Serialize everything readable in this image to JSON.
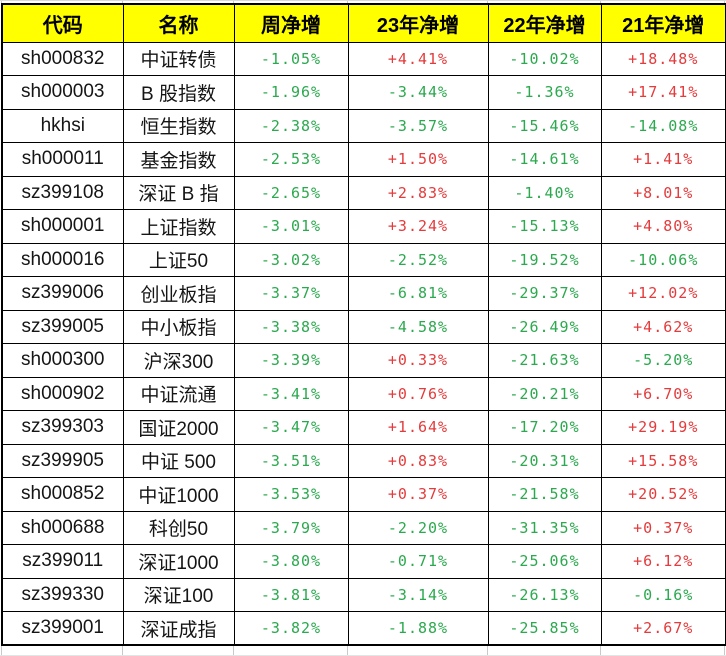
{
  "colors": {
    "header_bg": "#ffff00",
    "positive": "#e43b3c",
    "negative": "#2ba94e",
    "table_border": "#000000",
    "gridline": "#c9c9c9"
  },
  "table": {
    "columns": [
      "代码",
      "名称",
      "周净增",
      "23年净增",
      "22年净增",
      "21年净增"
    ],
    "rows": [
      {
        "code": "sh000832",
        "name": "中证转债",
        "week": "-1.05%",
        "y23": "+4.41%",
        "y22": "-10.02%",
        "y21": "+18.48%"
      },
      {
        "code": "sh000003",
        "name": "B 股指数",
        "week": "-1.96%",
        "y23": "-3.44%",
        "y22": "-1.36%",
        "y21": "+17.41%"
      },
      {
        "code": "hkhsi",
        "name": "恒生指数",
        "week": "-2.38%",
        "y23": "-3.57%",
        "y22": "-15.46%",
        "y21": "-14.08%"
      },
      {
        "code": "sh000011",
        "name": "基金指数",
        "week": "-2.53%",
        "y23": "+1.50%",
        "y22": "-14.61%",
        "y21": "+1.41%"
      },
      {
        "code": "sz399108",
        "name": "深证 B 指",
        "week": "-2.65%",
        "y23": "+2.83%",
        "y22": "-1.40%",
        "y21": "+8.01%"
      },
      {
        "code": "sh000001",
        "name": "上证指数",
        "week": "-3.01%",
        "y23": "+3.24%",
        "y22": "-15.13%",
        "y21": "+4.80%"
      },
      {
        "code": "sh000016",
        "name": "上证50",
        "week": "-3.02%",
        "y23": "-2.52%",
        "y22": "-19.52%",
        "y21": "-10.06%"
      },
      {
        "code": "sz399006",
        "name": "创业板指",
        "week": "-3.37%",
        "y23": "-6.81%",
        "y22": "-29.37%",
        "y21": "+12.02%"
      },
      {
        "code": "sz399005",
        "name": "中小板指",
        "week": "-3.38%",
        "y23": "-4.58%",
        "y22": "-26.49%",
        "y21": "+4.62%"
      },
      {
        "code": "sh000300",
        "name": "沪深300",
        "week": "-3.39%",
        "y23": "+0.33%",
        "y22": "-21.63%",
        "y21": "-5.20%"
      },
      {
        "code": "sh000902",
        "name": "中证流通",
        "week": "-3.41%",
        "y23": "+0.76%",
        "y22": "-20.21%",
        "y21": "+6.70%"
      },
      {
        "code": "sz399303",
        "name": "国证2000",
        "week": "-3.47%",
        "y23": "+1.64%",
        "y22": "-17.20%",
        "y21": "+29.19%"
      },
      {
        "code": "sz399905",
        "name": "中证 500",
        "week": "-3.51%",
        "y23": "+0.83%",
        "y22": "-20.31%",
        "y21": "+15.58%"
      },
      {
        "code": "sh000852",
        "name": "中证1000",
        "week": "-3.53%",
        "y23": "+0.37%",
        "y22": "-21.58%",
        "y21": "+20.52%"
      },
      {
        "code": "sh000688",
        "name": "科创50",
        "week": "-3.79%",
        "y23": "-2.20%",
        "y22": "-31.35%",
        "y21": "+0.37%"
      },
      {
        "code": "sz399011",
        "name": "深证1000",
        "week": "-3.80%",
        "y23": "-0.71%",
        "y22": "-25.06%",
        "y21": "+6.12%"
      },
      {
        "code": "sz399330",
        "name": "深证100",
        "week": "-3.81%",
        "y23": "-3.14%",
        "y22": "-26.13%",
        "y21": "-0.16%"
      },
      {
        "code": "sz399001",
        "name": "深证成指",
        "week": "-3.82%",
        "y23": "-1.88%",
        "y22": "-25.85%",
        "y21": "+2.67%"
      }
    ]
  }
}
